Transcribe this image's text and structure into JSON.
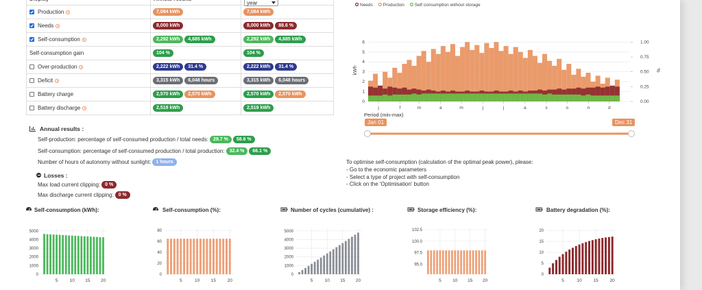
{
  "table": {
    "header": [
      "Display",
      "Annual results"
    ],
    "period": "year",
    "rows": [
      {
        "label": "Production",
        "checked": true,
        "info": true,
        "annual": [
          {
            "text": "7,084 kWh",
            "color": "#e8935f"
          }
        ],
        "period": [
          {
            "text": "7,084 kWh",
            "color": "#e8935f"
          }
        ]
      },
      {
        "label": "Needs",
        "checked": true,
        "info": true,
        "annual": [
          {
            "text": "8,000 kWh",
            "color": "#8c2a2e"
          }
        ],
        "period": [
          {
            "text": "8,000 kWh",
            "color": "#8c2a2e"
          },
          {
            "text": "88.6 %",
            "color": "#8c2a2e"
          }
        ]
      },
      {
        "label": "Self-consumption",
        "checked": true,
        "info": true,
        "annual": [
          {
            "text": "2,292 kWh",
            "color": "#4cb85c"
          },
          {
            "text": "4,685 kWh",
            "color": "#2e9e4c"
          }
        ],
        "period": [
          {
            "text": "2,292 kWh",
            "color": "#4cb85c"
          },
          {
            "text": "4,685 kWh",
            "color": "#2e9e4c"
          }
        ]
      },
      {
        "label": "Self-consumption gain",
        "annual": [
          {
            "text": "104 %",
            "color": "#2e9e4c"
          }
        ],
        "period": [
          {
            "text": "104 %",
            "color": "#2e9e4c"
          }
        ]
      },
      {
        "label": "Over-production",
        "checked": false,
        "info": true,
        "annual": [
          {
            "text": "2,222 kWh",
            "color": "#2e3a8f"
          },
          {
            "text": "31.4 %",
            "color": "#2e3a8f"
          }
        ],
        "period": [
          {
            "text": "2,222 kWh",
            "color": "#2e3a8f"
          },
          {
            "text": "31.4 %",
            "color": "#2e3a8f"
          }
        ]
      },
      {
        "label": "Deficit",
        "checked": false,
        "info": true,
        "annual": [
          {
            "text": "3,315 kWh",
            "color": "#6b6f75"
          },
          {
            "text": "6,048 hours",
            "color": "#6b6f75"
          }
        ],
        "period": [
          {
            "text": "3,315 kWh",
            "color": "#6b6f75"
          },
          {
            "text": "6,048 hours",
            "color": "#6b6f75"
          }
        ]
      },
      {
        "label": "Battery charge",
        "checked": false,
        "annual": [
          {
            "text": "2,570 kWh",
            "color": "#2e9e4c"
          },
          {
            "text": "2,570 kWh",
            "color": "#e8935f"
          }
        ],
        "period": [
          {
            "text": "2,570 kWh",
            "color": "#2e9e4c"
          },
          {
            "text": "2,570 kWh",
            "color": "#e8935f"
          }
        ]
      },
      {
        "label": "Battery discharge",
        "checked": false,
        "info": true,
        "annual": [
          {
            "text": "2,519 kWh",
            "color": "#2e9e4c"
          }
        ],
        "period": [
          {
            "text": "2,519 kWh",
            "color": "#2e9e4c"
          }
        ]
      }
    ]
  },
  "annual": {
    "title": "Annual results :",
    "lines": [
      {
        "text": "Self-production: percentage of self-consumed production / total needs:",
        "badges": [
          {
            "text": "28.7 %",
            "color": "#4cb85c"
          },
          {
            "text": "58.6 %",
            "color": "#2e9e4c"
          }
        ]
      },
      {
        "text": "Self-consumption: percentage of self-consumed production / total production:",
        "badges": [
          {
            "text": "32.4 %",
            "color": "#4cb85c"
          },
          {
            "text": "66.1 %",
            "color": "#2e9e4c"
          }
        ]
      },
      {
        "text": "Number of hours of autonomy without sunlight:",
        "badges": [
          {
            "text": "1 hours",
            "color": "#8fb2ee"
          }
        ]
      }
    ],
    "losses": {
      "title": "Losses :",
      "lines": [
        {
          "text": "Max load current clipping:",
          "badges": [
            {
              "text": "0 %",
              "color": "#8c2a2e"
            }
          ]
        },
        {
          "text": "Max discharge current clipping:",
          "badges": [
            {
              "text": "0 %",
              "color": "#8c2a2e"
            }
          ]
        }
      ]
    }
  },
  "instructions": [
    "To optimise self-consumption (calculation of the optimal peak power), please:",
    "- Go to the economic parameters",
    "- Select a type of project with self-consumption",
    "- Click on the 'Optimisation' button"
  ],
  "chart_data": [
    {
      "type": "bar",
      "ylabel": "kWh",
      "y2label": "%",
      "xlabel": "Period (min-max)",
      "x": [
        0,
        7,
        14,
        21,
        28,
        35,
        42,
        49,
        56,
        63,
        70,
        77,
        84,
        91,
        98,
        105,
        112,
        119,
        126,
        133,
        140,
        147,
        154,
        161,
        168,
        175,
        182,
        189,
        196,
        203,
        210,
        217,
        224,
        231,
        238,
        245,
        252,
        259,
        266,
        273,
        280,
        287,
        294,
        301,
        308,
        315,
        322,
        329,
        336,
        343,
        350,
        357
      ],
      "xlim": [
        0,
        380
      ],
      "xticks": [
        {
          "value": 15,
          "label": "j"
        },
        {
          "value": 46,
          "label": "f"
        },
        {
          "value": 74,
          "label": "m"
        },
        {
          "value": 105,
          "label": "a"
        },
        {
          "value": 135,
          "label": "m"
        },
        {
          "value": 166,
          "label": "j"
        },
        {
          "value": 196,
          "label": "j"
        },
        {
          "value": 227,
          "label": "a"
        },
        {
          "value": 258,
          "label": "s"
        },
        {
          "value": 288,
          "label": "o"
        },
        {
          "value": 319,
          "label": "n"
        },
        {
          "value": 349,
          "label": "d"
        }
      ],
      "ylim": [
        0,
        6.3
      ],
      "yticks": [
        0,
        1,
        2,
        3,
        4,
        5,
        6
      ],
      "y2lim": [
        0,
        1.05
      ],
      "y2ticks": [
        {
          "value": 0,
          "label": "0.00"
        },
        0.25,
        {
          "value": 0.5,
          "label": "0.50"
        },
        0.75,
        {
          "value": 1,
          "label": "1.00"
        }
      ],
      "grid": true,
      "series": [
        {
          "name": "Production",
          "color": "#e8935f",
          "values": [
            2.1,
            2.8,
            1.6,
            3.0,
            2.4,
            3.4,
            2.9,
            3.8,
            4.2,
            3.6,
            4.6,
            5.1,
            4.0,
            5.3,
            4.8,
            5.6,
            5.0,
            5.8,
            4.6,
            5.5,
            6.0,
            5.2,
            5.7,
            4.9,
            5.9,
            5.4,
            6.0,
            5.1,
            5.6,
            4.8,
            5.5,
            5.0,
            4.4,
            5.2,
            4.6,
            3.9,
            4.8,
            4.1,
            3.6,
            4.3,
            3.2,
            3.8,
            2.7,
            3.3,
            2.5,
            2.9,
            2.0,
            2.6,
            1.8,
            2.4,
            1.5,
            2.2
          ]
        },
        {
          "name": "Needs",
          "color": "#8c2a2e",
          "values": [
            1.5,
            1.4,
            1.6,
            1.3,
            1.5,
            1.4,
            1.3,
            1.4,
            1.2,
            1.3,
            1.2,
            1.1,
            1.2,
            1.1,
            1.0,
            1.1,
            1.0,
            1.1,
            1.0,
            1.0,
            1.1,
            1.0,
            1.0,
            1.1,
            1.0,
            1.0,
            1.1,
            1.0,
            1.0,
            1.1,
            1.0,
            1.1,
            1.0,
            1.1,
            1.1,
            1.2,
            1.1,
            1.2,
            1.2,
            1.3,
            1.2,
            1.3,
            1.3,
            1.4,
            1.3,
            1.4,
            1.4,
            1.5,
            1.4,
            1.5,
            1.6,
            1.5
          ]
        },
        {
          "name": "Self consumption without storage",
          "color": "#6cc24a",
          "values": [
            0.6,
            0.6,
            0.6,
            0.7,
            0.6,
            0.7,
            0.7,
            0.7,
            0.7,
            0.8,
            0.7,
            0.8,
            0.8,
            0.8,
            0.8,
            0.8,
            0.8,
            0.8,
            0.8,
            0.8,
            0.8,
            0.8,
            0.8,
            0.8,
            0.8,
            0.8,
            0.8,
            0.8,
            0.8,
            0.8,
            0.8,
            0.8,
            0.8,
            0.8,
            0.8,
            0.8,
            0.7,
            0.8,
            0.7,
            0.7,
            0.7,
            0.7,
            0.7,
            0.7,
            0.6,
            0.7,
            0.6,
            0.6,
            0.6,
            0.6,
            0.6,
            0.6
          ]
        }
      ],
      "legend_order": [
        "Needs",
        "Production",
        "Self consumption without storage"
      ],
      "range": {
        "start": "Jan 01",
        "end": "Dec 31"
      }
    },
    {
      "type": "bar",
      "title": "Self-consumption (kWh):",
      "icon": "gauge",
      "color": "#4cb85c",
      "x": [
        1,
        2,
        3,
        4,
        5,
        6,
        7,
        8,
        9,
        10,
        11,
        12,
        13,
        14,
        15,
        16,
        17,
        18,
        19,
        20
      ],
      "values": [
        4650,
        4620,
        4600,
        4580,
        4560,
        4540,
        4520,
        4500,
        4480,
        4460,
        4440,
        4420,
        4400,
        4380,
        4360,
        4340,
        4320,
        4300,
        4280,
        4260
      ],
      "xlim": [
        0,
        21
      ],
      "xticks": [
        5,
        10,
        15,
        20
      ],
      "ylim": [
        0,
        5300
      ],
      "yticks": [
        0,
        1000,
        2000,
        3000,
        4000,
        5000
      ],
      "grid": true
    },
    {
      "type": "bar",
      "title": "Self-consumption (%):",
      "icon": "gauge",
      "color": "#eda077",
      "x": [
        1,
        2,
        3,
        4,
        5,
        6,
        7,
        8,
        9,
        10,
        11,
        12,
        13,
        14,
        15,
        16,
        17,
        18,
        19,
        20
      ],
      "values": [
        65,
        65,
        65,
        65,
        65,
        65,
        65,
        65,
        65,
        65,
        65,
        65,
        65,
        65,
        65,
        65,
        65,
        65,
        65,
        65
      ],
      "xlim": [
        0,
        21
      ],
      "xticks": [
        5,
        10,
        15,
        20
      ],
      "ylim": [
        0,
        84
      ],
      "yticks": [
        0,
        20,
        40,
        60,
        80
      ],
      "grid": true
    },
    {
      "type": "bar",
      "title": "Number of cycles (cumulative) :",
      "icon": "battery",
      "color": "#8a8e96",
      "x": [
        1,
        2,
        3,
        4,
        5,
        6,
        7,
        8,
        9,
        10,
        11,
        12,
        13,
        14,
        15,
        16,
        17,
        18,
        19,
        20
      ],
      "values": [
        240,
        480,
        720,
        960,
        1200,
        1440,
        1680,
        1920,
        2160,
        2400,
        2640,
        2880,
        3120,
        3360,
        3600,
        3840,
        4080,
        4320,
        4560,
        4800
      ],
      "xlim": [
        0,
        21
      ],
      "xticks": [
        5,
        10,
        15,
        20
      ],
      "ylim": [
        0,
        5300
      ],
      "yticks": [
        0,
        1000,
        2000,
        3000,
        4000,
        5000
      ],
      "grid": true
    },
    {
      "type": "bar",
      "title": "Storage efficiency (%):",
      "icon": "battery",
      "color": "#eda077",
      "x": [
        1,
        2,
        3,
        4,
        5,
        6,
        7,
        8,
        9,
        10,
        11,
        12,
        13,
        14,
        15,
        16,
        17,
        18,
        19,
        20
      ],
      "values": [
        98,
        98,
        98,
        98,
        98,
        98,
        98,
        98,
        98,
        98,
        98,
        98,
        98,
        98,
        98,
        98,
        98,
        98,
        98,
        98
      ],
      "xlim": [
        0,
        21
      ],
      "xticks": [
        5,
        10,
        15,
        20
      ],
      "ylim": [
        92.8,
        102.8
      ],
      "yticks": [
        {
          "value": 95,
          "label": "95.0"
        },
        97.5,
        {
          "value": 100,
          "label": "100.0"
        },
        102.5
      ],
      "grid": true
    },
    {
      "type": "bar",
      "title": "Battery degradation (%):",
      "icon": "battery",
      "color": "#8c2a2e",
      "x": [
        1,
        2,
        3,
        4,
        5,
        6,
        7,
        8,
        9,
        10,
        11,
        12,
        13,
        14,
        15,
        16,
        17,
        18,
        19,
        20
      ],
      "values": [
        3,
        5,
        6.5,
        8,
        9.2,
        10.3,
        11.3,
        12.1,
        12.9,
        13.6,
        14.2,
        14.7,
        15.2,
        15.6,
        16,
        16.3,
        16.6,
        16.8,
        17,
        17.2
      ],
      "xlim": [
        0,
        21
      ],
      "xticks": [
        5,
        10,
        15,
        20
      ],
      "ylim": [
        0,
        21
      ],
      "yticks": [
        0,
        5,
        10,
        15,
        20
      ],
      "grid": true
    }
  ]
}
